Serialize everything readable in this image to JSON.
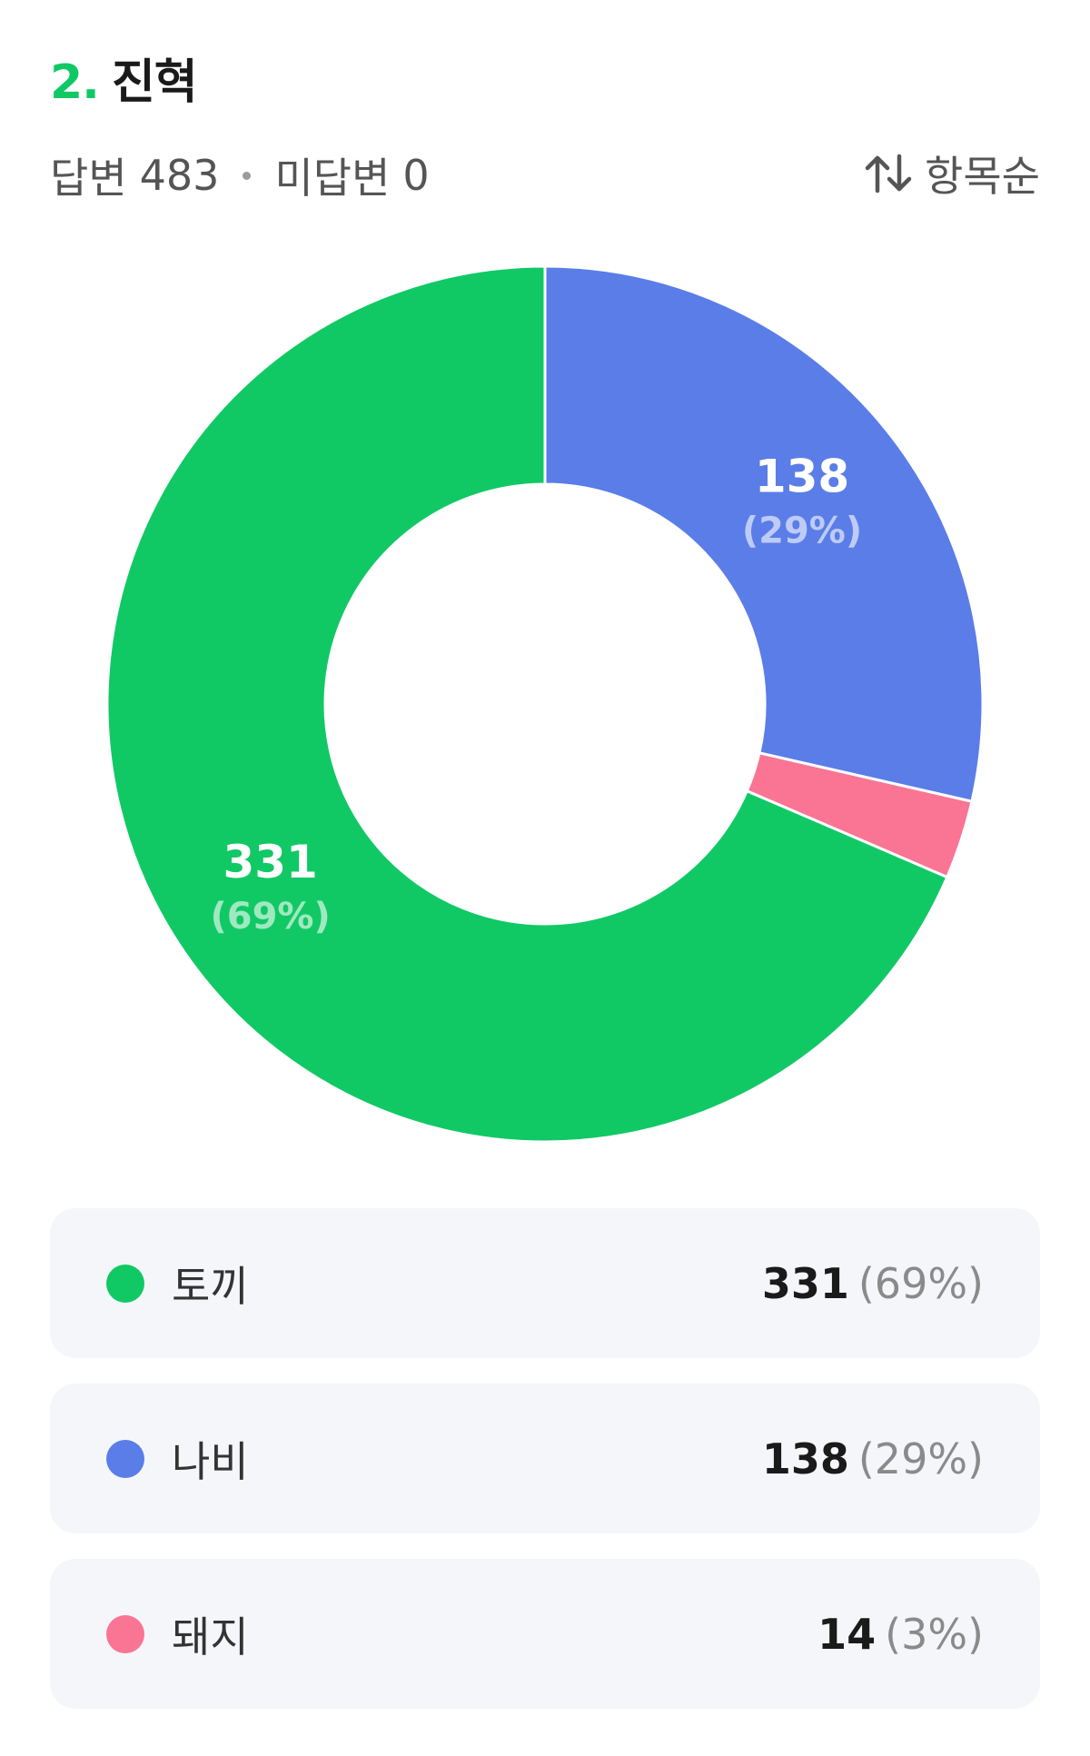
{
  "question": {
    "number": "2.",
    "title": "진혁"
  },
  "summary": {
    "answered_label": "답변",
    "answered_count": "483",
    "unanswered_label": "미답변",
    "unanswered_count": "0"
  },
  "sort": {
    "label": "항목순",
    "icon": "sort-arrows-icon"
  },
  "colors": {
    "rabbit": "#10c965",
    "butterfly": "#5a7de8",
    "pig": "#fa7493",
    "accent": "#10c965"
  },
  "chart_data": {
    "type": "pie",
    "donut": true,
    "total": 483,
    "slices": [
      {
        "label": "나비",
        "value": 138,
        "percent_label": "(29%)",
        "color": "#5a7de8",
        "show_label": true
      },
      {
        "label": "돼지",
        "value": 14,
        "percent_label": "(3%)",
        "color": "#fa7493",
        "show_label": false
      },
      {
        "label": "토끼",
        "value": 331,
        "percent_label": "(69%)",
        "color": "#10c965",
        "show_label": true
      }
    ]
  },
  "legend": [
    {
      "label": "토끼",
      "value": "331",
      "percent": "(69%)",
      "color": "#10c965"
    },
    {
      "label": "나비",
      "value": "138",
      "percent": "(29%)",
      "color": "#5a7de8"
    },
    {
      "label": "돼지",
      "value": "14",
      "percent": "(3%)",
      "color": "#fa7493"
    }
  ]
}
